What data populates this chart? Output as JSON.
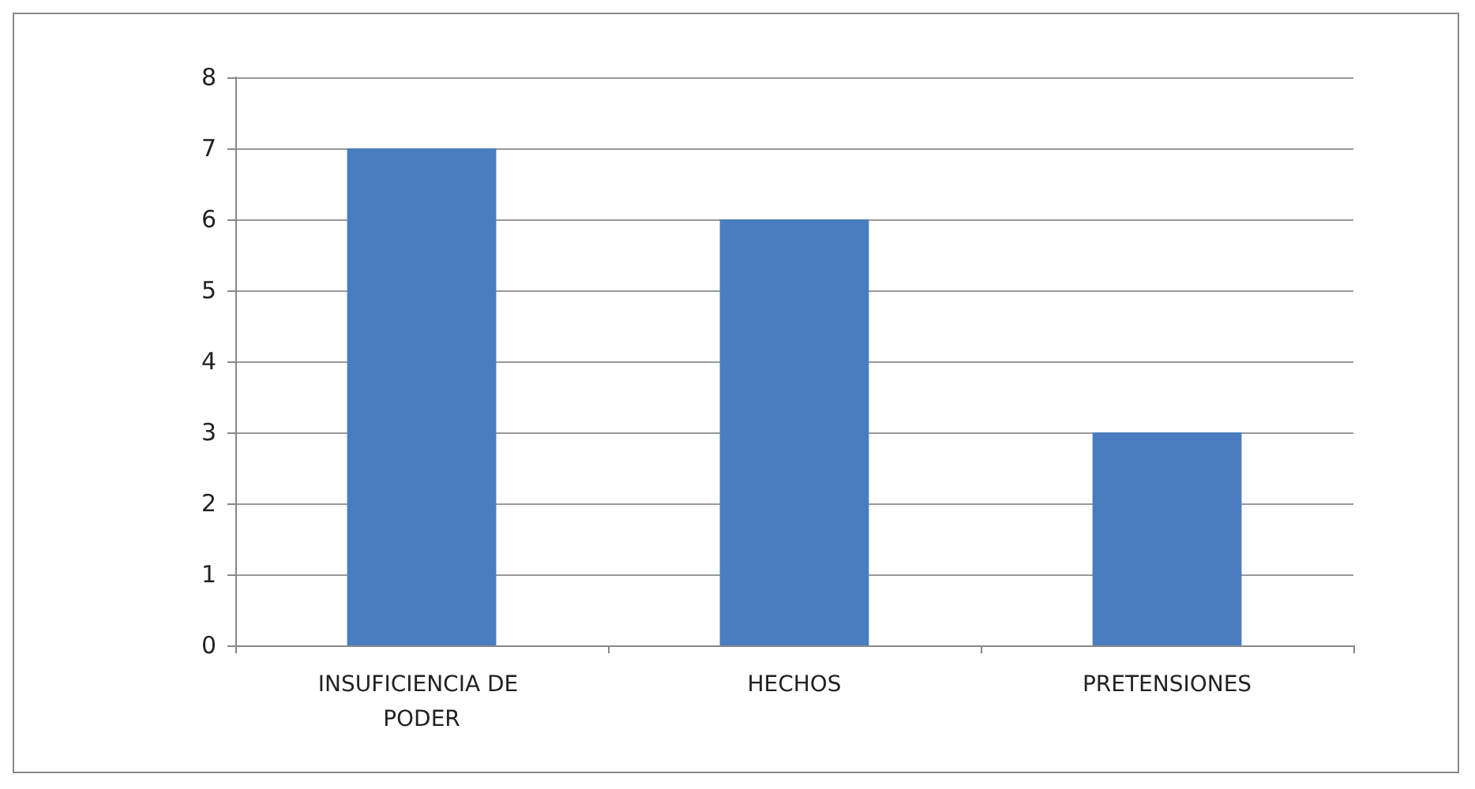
{
  "chart_data": {
    "type": "bar",
    "categories": [
      "INSUFICIENCIA DE PODER",
      "HECHOS",
      "PRETENSIONES"
    ],
    "values": [
      7,
      6,
      3
    ],
    "color": "#4a7dbf",
    "ylim": [
      0,
      8
    ],
    "yticks": [
      0,
      1,
      2,
      3,
      4,
      5,
      6,
      7,
      8
    ],
    "grid": "y"
  }
}
